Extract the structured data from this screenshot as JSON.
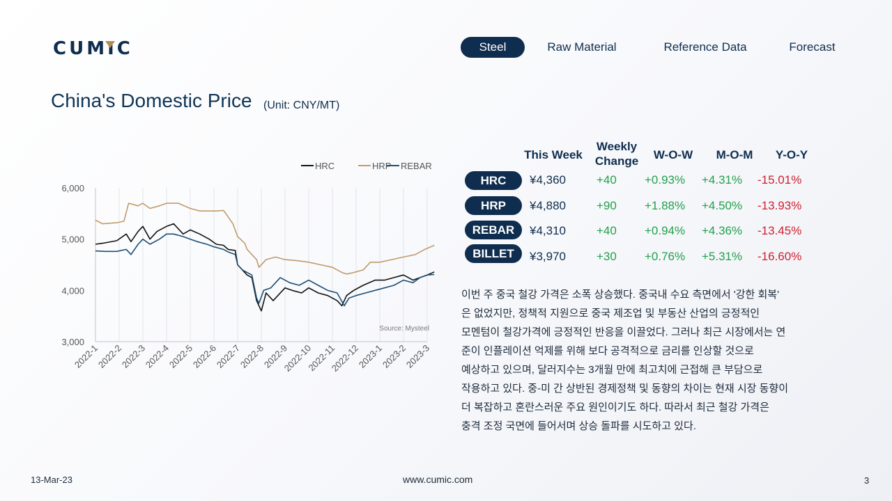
{
  "brand": {
    "logo_text": "CUMIC",
    "navy": "#0f2d4e",
    "gold": "#b08d57"
  },
  "nav": {
    "items": [
      {
        "label": "Steel",
        "active": true
      },
      {
        "label": "Raw Material",
        "active": false
      },
      {
        "label": "Reference Data",
        "active": false
      },
      {
        "label": "Forecast",
        "active": false
      }
    ]
  },
  "page": {
    "title": "China's Domestic Price",
    "unit": "(Unit: CNY/MT)"
  },
  "table": {
    "headers": {
      "this_week": "This Week",
      "weekly_change_1": "Weekly",
      "weekly_change_2": "Change",
      "wow": "W-O-W",
      "mom": "M-O-M",
      "yoy": "Y-O-Y"
    },
    "rows": [
      {
        "name": "HRC",
        "price": "¥4,360",
        "change": "+40",
        "wow": "+0.93%",
        "mom": "+4.31%",
        "yoy": "-15.01%"
      },
      {
        "name": "HRP",
        "price": "¥4,880",
        "change": "+90",
        "wow": "+1.88%",
        "mom": "+4.50%",
        "yoy": "-13.93%"
      },
      {
        "name": "REBAR",
        "price": "¥4,310",
        "change": "+40",
        "wow": "+0.94%",
        "mom": "+4.36%",
        "yoy": "-13.45%"
      },
      {
        "name": "BILLET",
        "price": "¥3,970",
        "change": "+30",
        "wow": "+0.76%",
        "mom": "+5.31%",
        "yoy": "-16.60%"
      }
    ],
    "colors": {
      "positive": "#22a04b",
      "negative": "#d0202f"
    }
  },
  "commentary": {
    "lines": [
      "이번 주 중국 철강 가격은 소폭 상승했다. 중국내 수요 측면에서 '강한 회복'",
      "은 없었지만, 정책적 지원으로 중국 제조업 및 부동산 산업의 긍정적인",
      "모멘텀이 철강가격에 긍정적인 반응을 이끌었다. 그러나 최근 시장에서는 연",
      "준이 인플레이션 억제를 위해 보다 공격적으로 금리를 인상할 것으로",
      "예상하고 있으며, 달러지수는 3개월 만에 최고치에 근접해 큰 부담으로",
      "작용하고 있다. 중-미 간 상반된 경제정책 및 동향의 차이는 현재 시장 동향이",
      "더 복잡하고 혼란스러운 주요 원인이기도 하다. 따라서 최근 철강 가격은",
      "충격 조정 국면에 들어서며 상승 돌파를 시도하고 있다."
    ]
  },
  "footer": {
    "date": "13-Mar-23",
    "url": "www.cumic.com",
    "page": "3"
  },
  "chart_data": {
    "type": "line",
    "source": "Source: Mysteel",
    "ylim": [
      3000,
      6000
    ],
    "yticks": [
      3000,
      4000,
      5000,
      6000
    ],
    "ytick_labels": [
      "3,000",
      "4,000",
      "5,000",
      "6,000"
    ],
    "x_categories": [
      "2022-1",
      "2022-2",
      "2022-3",
      "2022-4",
      "2022-5",
      "2022-6",
      "2022-7",
      "2022-8",
      "2022-9",
      "2022-10",
      "2022-11",
      "2022-12",
      "2023-1",
      "2023-2",
      "2023-3"
    ],
    "grid": "vertical",
    "legend": "top",
    "series": [
      {
        "name": "HRC",
        "color": "#111111",
        "x": [
          0,
          0.3,
          0.9,
          1.3,
          1.5,
          1.8,
          2.0,
          2.3,
          2.6,
          3.0,
          3.3,
          3.7,
          4.0,
          4.4,
          4.8,
          5.1,
          5.4,
          5.6,
          5.9,
          6.0,
          6.2,
          6.4,
          6.6,
          6.8,
          7.0,
          7.2,
          7.5,
          8.0,
          8.3,
          8.7,
          9.0,
          9.4,
          9.8,
          10.2,
          10.4,
          10.6,
          10.9,
          11.3,
          11.8,
          12.2,
          12.6,
          13.0,
          13.4,
          13.7,
          14.0,
          14.3
        ],
        "values": [
          4900,
          4920,
          4970,
          5100,
          4950,
          5150,
          5250,
          5000,
          5150,
          5250,
          5300,
          5100,
          5180,
          5100,
          5000,
          4900,
          4880,
          4800,
          4780,
          4500,
          4400,
          4300,
          4250,
          3800,
          3600,
          3950,
          3800,
          4050,
          4000,
          3950,
          4050,
          3950,
          3900,
          3800,
          3700,
          3900,
          4000,
          4100,
          4200,
          4200,
          4250,
          4300,
          4200,
          4250,
          4300,
          4360
        ]
      },
      {
        "name": "HRP",
        "color": "#c19a6b",
        "x": [
          0,
          0.3,
          0.9,
          1.2,
          1.4,
          1.8,
          2.0,
          2.3,
          2.7,
          3.0,
          3.5,
          4.0,
          4.4,
          4.8,
          5.1,
          5.4,
          5.5,
          5.8,
          6.0,
          6.3,
          6.4,
          6.6,
          6.8,
          6.9,
          7.2,
          7.6,
          8.0,
          8.5,
          9.0,
          9.5,
          10.0,
          10.4,
          10.6,
          10.9,
          11.3,
          11.6,
          12.0,
          12.5,
          13.0,
          13.5,
          13.9,
          14.3
        ],
        "values": [
          5370,
          5300,
          5320,
          5350,
          5700,
          5650,
          5700,
          5600,
          5650,
          5700,
          5700,
          5600,
          5550,
          5550,
          5550,
          5560,
          5500,
          5300,
          5050,
          4920,
          4800,
          4700,
          4600,
          4450,
          4600,
          4650,
          4600,
          4580,
          4550,
          4500,
          4450,
          4350,
          4320,
          4350,
          4400,
          4550,
          4550,
          4600,
          4650,
          4700,
          4800,
          4880
        ]
      },
      {
        "name": "REBAR",
        "color": "#1d4d74",
        "x": [
          0,
          0.4,
          0.9,
          1.3,
          1.5,
          1.8,
          2.0,
          2.3,
          2.7,
          3.0,
          3.3,
          3.7,
          4.0,
          4.3,
          4.7,
          5.0,
          5.4,
          5.6,
          5.9,
          6.0,
          6.2,
          6.4,
          6.6,
          6.8,
          6.9,
          7.1,
          7.4,
          7.8,
          8.2,
          8.6,
          9.0,
          9.4,
          9.8,
          10.2,
          10.5,
          10.7,
          11.0,
          11.4,
          11.8,
          12.2,
          12.6,
          13.0,
          13.4,
          13.7,
          14.0,
          14.3
        ],
        "values": [
          4770,
          4760,
          4760,
          4800,
          4700,
          4900,
          5000,
          4900,
          5000,
          5100,
          5100,
          5050,
          5000,
          4950,
          4900,
          4850,
          4800,
          4750,
          4700,
          4500,
          4400,
          4350,
          4300,
          3850,
          3750,
          4000,
          4050,
          4250,
          4150,
          4100,
          4200,
          4100,
          4000,
          3950,
          3700,
          3850,
          3900,
          3950,
          4000,
          4050,
          4100,
          4200,
          4150,
          4250,
          4300,
          4310
        ]
      }
    ]
  }
}
